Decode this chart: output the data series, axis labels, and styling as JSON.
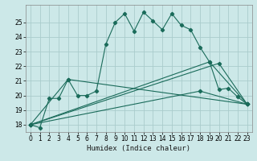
{
  "xlabel": "Humidex (Indice chaleur)",
  "bg_color": "#cce8e8",
  "grid_color": "#aacccc",
  "line_color": "#1a6b5a",
  "xlim": [
    -0.5,
    23.5
  ],
  "ylim": [
    17.5,
    26.2
  ],
  "yticks": [
    18,
    19,
    20,
    21,
    22,
    23,
    24,
    25
  ],
  "xticks": [
    0,
    1,
    2,
    3,
    4,
    5,
    6,
    7,
    8,
    9,
    10,
    11,
    12,
    13,
    14,
    15,
    16,
    17,
    18,
    19,
    20,
    21,
    22,
    23
  ],
  "main_series": [
    [
      0,
      18.0
    ],
    [
      1,
      17.8
    ],
    [
      2,
      19.8
    ],
    [
      3,
      19.8
    ],
    [
      4,
      21.1
    ],
    [
      5,
      20.0
    ],
    [
      6,
      20.0
    ],
    [
      7,
      20.3
    ],
    [
      8,
      23.5
    ],
    [
      9,
      25.0
    ],
    [
      10,
      25.6
    ],
    [
      11,
      24.4
    ],
    [
      12,
      25.7
    ],
    [
      13,
      25.1
    ],
    [
      14,
      24.5
    ],
    [
      15,
      25.6
    ],
    [
      16,
      24.8
    ],
    [
      17,
      24.5
    ],
    [
      18,
      23.3
    ],
    [
      19,
      22.3
    ],
    [
      20,
      20.4
    ],
    [
      21,
      20.5
    ],
    [
      22,
      19.9
    ],
    [
      23,
      19.4
    ]
  ],
  "straight_lines": [
    [
      [
        0,
        18.0
      ],
      [
        4,
        21.1
      ],
      [
        23,
        19.4
      ]
    ],
    [
      [
        0,
        18.0
      ],
      [
        19,
        22.3
      ],
      [
        23,
        19.4
      ]
    ],
    [
      [
        0,
        18.0
      ],
      [
        20,
        22.2
      ],
      [
        23,
        19.4
      ]
    ],
    [
      [
        0,
        18.0
      ],
      [
        18,
        20.3
      ],
      [
        23,
        19.4
      ]
    ]
  ]
}
